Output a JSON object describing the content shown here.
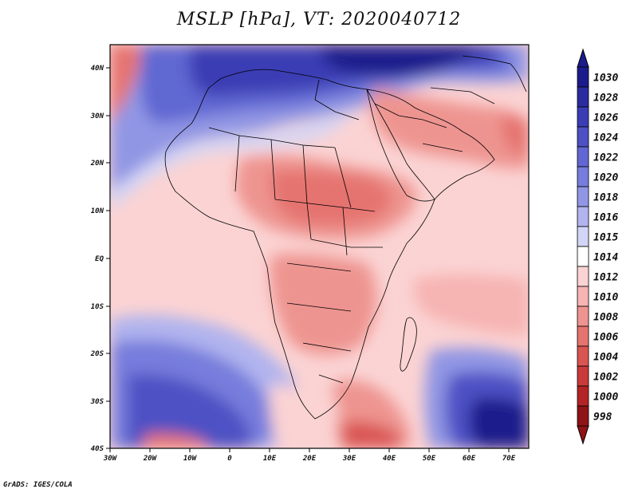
{
  "title": "MSLP [hPa], VT: 2020040712",
  "footer": "GrADS: IGES/COLA",
  "lon_labels": [
    "30W",
    "20W",
    "10W",
    "0",
    "10E",
    "20E",
    "30E",
    "40E",
    "50E",
    "60E",
    "70E"
  ],
  "lat_labels": [
    "40N",
    "30N",
    "20N",
    "10N",
    "EQ",
    "10S",
    "20S",
    "30S",
    "40S"
  ],
  "colorbar": {
    "levels": [
      "1030",
      "1028",
      "1026",
      "1024",
      "1022",
      "1020",
      "1018",
      "1016",
      "1015",
      "1014",
      "1012",
      "1010",
      "1008",
      "1006",
      "1004",
      "1002",
      "1000",
      "998"
    ],
    "colors": [
      "#1b1b8c",
      "#2a2ca0",
      "#3a3db4",
      "#4d51c4",
      "#6167d2",
      "#777ddc",
      "#9196e4",
      "#b1b4ee",
      "#d3d5f6",
      "#ffffff",
      "#fbd3d3",
      "#f6b4b2",
      "#ee9490",
      "#e5736f",
      "#d95552",
      "#c93a3b",
      "#b32426",
      "#8e1416"
    ]
  },
  "chart_data": {
    "type": "heatmap",
    "title": "MSLP [hPa], VT: 2020040712",
    "variable": "MSLP",
    "units": "hPa",
    "valid_time": "2020040712",
    "lon_range": [
      -30,
      75
    ],
    "lat_range": [
      -40,
      45
    ],
    "x_ticks": [
      "30W",
      "20W",
      "10W",
      "0",
      "10E",
      "20E",
      "30E",
      "40E",
      "50E",
      "60E",
      "70E"
    ],
    "y_ticks": [
      "40N",
      "30N",
      "20N",
      "10N",
      "EQ",
      "10S",
      "20S",
      "30S",
      "40S"
    ],
    "colorbar_levels": [
      998,
      1000,
      1002,
      1004,
      1006,
      1008,
      1010,
      1012,
      1014,
      1015,
      1016,
      1018,
      1020,
      1022,
      1024,
      1026,
      1028,
      1030
    ]
  }
}
